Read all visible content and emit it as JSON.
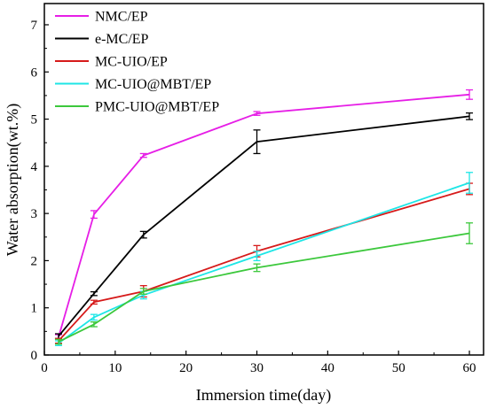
{
  "chart_data": {
    "type": "line",
    "xlabel": "Immersion time(day)",
    "ylabel": "Water absorption(wt.%)",
    "xlim": [
      0,
      62
    ],
    "ylim": [
      0,
      7.45
    ],
    "x_ticks": [
      0,
      10,
      20,
      30,
      40,
      50,
      60
    ],
    "y_ticks": [
      0,
      1,
      2,
      3,
      4,
      5,
      6,
      7
    ],
    "x_tick_labels": [
      "0",
      "10",
      "20",
      "30",
      "40",
      "50",
      "60"
    ],
    "y_tick_labels": [
      "0",
      "1",
      "2",
      "3",
      "4",
      "5",
      "6",
      "7"
    ],
    "grid": false,
    "legend_position": "top-left",
    "x": [
      2,
      7,
      14,
      30,
      60
    ],
    "series": [
      {
        "name": "NMC/EP",
        "color": "#e61ee6",
        "values": [
          0.38,
          2.98,
          4.23,
          5.12,
          5.52
        ],
        "errors": [
          0.05,
          0.08,
          0.04,
          0.04,
          0.1
        ]
      },
      {
        "name": "e-MC/EP",
        "color": "#000000",
        "values": [
          0.4,
          1.3,
          2.55,
          4.52,
          5.06
        ],
        "errors": [
          0.05,
          0.04,
          0.07,
          0.25,
          0.07
        ]
      },
      {
        "name": "MC-UIO/EP",
        "color": "#d61a1a",
        "values": [
          0.3,
          1.12,
          1.35,
          2.2,
          3.52
        ],
        "errors": [
          0.05,
          0.04,
          0.12,
          0.12,
          0.12
        ]
      },
      {
        "name": "MC-UIO@MBT/EP",
        "color": "#1ee6e6",
        "values": [
          0.25,
          0.8,
          1.27,
          2.1,
          3.65
        ],
        "errors": [
          0.05,
          0.06,
          0.08,
          0.1,
          0.22
        ]
      },
      {
        "name": "PMC-UIO@MBT/EP",
        "color": "#3cc83c",
        "values": [
          0.28,
          0.65,
          1.35,
          1.85,
          2.58
        ],
        "errors": [
          0.05,
          0.05,
          0.06,
          0.08,
          0.22
        ]
      }
    ]
  }
}
